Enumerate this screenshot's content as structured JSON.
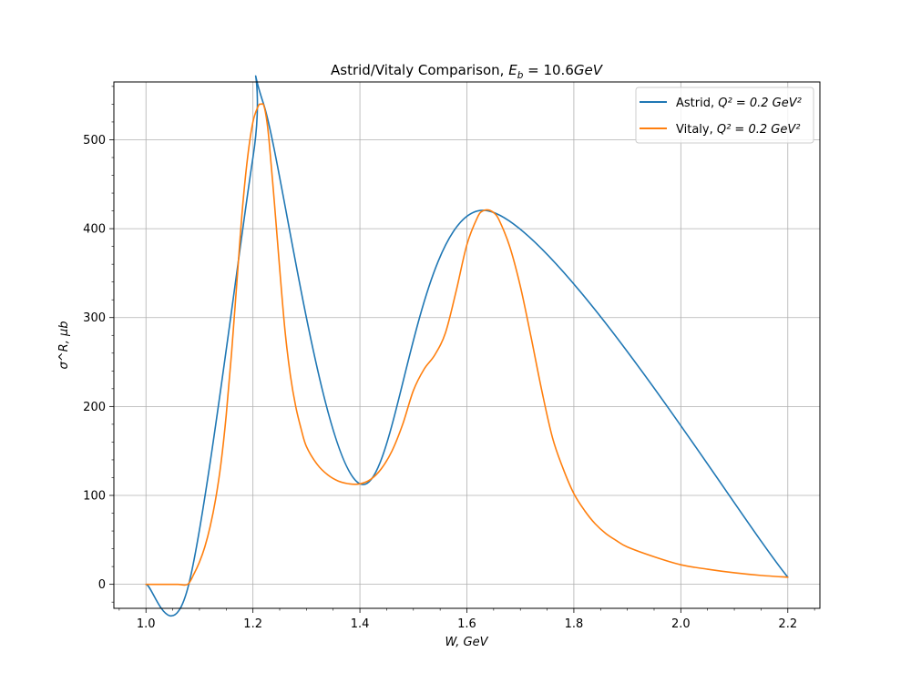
{
  "chart_data": {
    "type": "line",
    "title": "Astrid/Vitaly Comparison, E_b = 10.6GeV",
    "title_parts": {
      "prefix": "Astrid/Vitaly Comparison, ",
      "var": "E",
      "sub": "b",
      "eq": " = 10.6",
      "unit": "GeV"
    },
    "xlabel": "W, GeV",
    "ylabel": "σ^R, μb",
    "xlim": [
      0.94,
      2.26
    ],
    "ylim": [
      -27,
      565
    ],
    "x_ticks": [
      "1.0",
      "1.2",
      "1.4",
      "1.6",
      "1.8",
      "2.0",
      "2.2"
    ],
    "y_ticks": [
      "0",
      "100",
      "200",
      "300",
      "400",
      "500"
    ],
    "grid": true,
    "legend_position": "top-right",
    "series": [
      {
        "name": "Astrid, Q^2 = 0.2 GeV^2",
        "legend_label": {
          "prefix": "Astrid, ",
          "eq": "Q² = 0.2 GeV²"
        },
        "color": "#1f77b4",
        "x": [
          1.0,
          1.08,
          1.2,
          1.22,
          1.4,
          1.64,
          2.2
        ],
        "y": [
          0,
          0,
          480,
          540,
          113,
          420,
          8
        ]
      },
      {
        "name": "Vitaly, Q^2 = 0.2 GeV^2",
        "legend_label": {
          "prefix": "Vitaly, ",
          "eq": "Q² = 0.2 GeV²"
        },
        "color": "#ff7f0e",
        "x": [
          1.0,
          1.02,
          1.04,
          1.06,
          1.078,
          1.09,
          1.1,
          1.11,
          1.12,
          1.13,
          1.14,
          1.15,
          1.16,
          1.17,
          1.18,
          1.19,
          1.2,
          1.21,
          1.215,
          1.22,
          1.225,
          1.23,
          1.24,
          1.25,
          1.26,
          1.27,
          1.28,
          1.29,
          1.3,
          1.32,
          1.34,
          1.36,
          1.38,
          1.4,
          1.42,
          1.44,
          1.46,
          1.48,
          1.5,
          1.52,
          1.54,
          1.56,
          1.58,
          1.6,
          1.62,
          1.63,
          1.64,
          1.65,
          1.66,
          1.68,
          1.7,
          1.72,
          1.74,
          1.76,
          1.78,
          1.8,
          1.82,
          1.84,
          1.86,
          1.88,
          1.9,
          1.95,
          2.0,
          2.05,
          2.1,
          2.15,
          2.2
        ],
        "y": [
          0,
          0,
          0,
          0,
          0,
          12,
          25,
          42,
          65,
          95,
          135,
          190,
          260,
          340,
          420,
          480,
          520,
          538,
          540,
          539,
          525,
          500,
          430,
          355,
          285,
          235,
          200,
          175,
          155,
          135,
          123,
          116,
          113,
          113,
          118,
          130,
          150,
          180,
          218,
          242,
          258,
          283,
          330,
          382,
          413,
          420,
          421,
          418,
          410,
          380,
          335,
          278,
          218,
          165,
          130,
          102,
          83,
          68,
          57,
          49,
          42,
          31,
          22,
          17,
          13,
          10,
          8
        ]
      }
    ]
  }
}
